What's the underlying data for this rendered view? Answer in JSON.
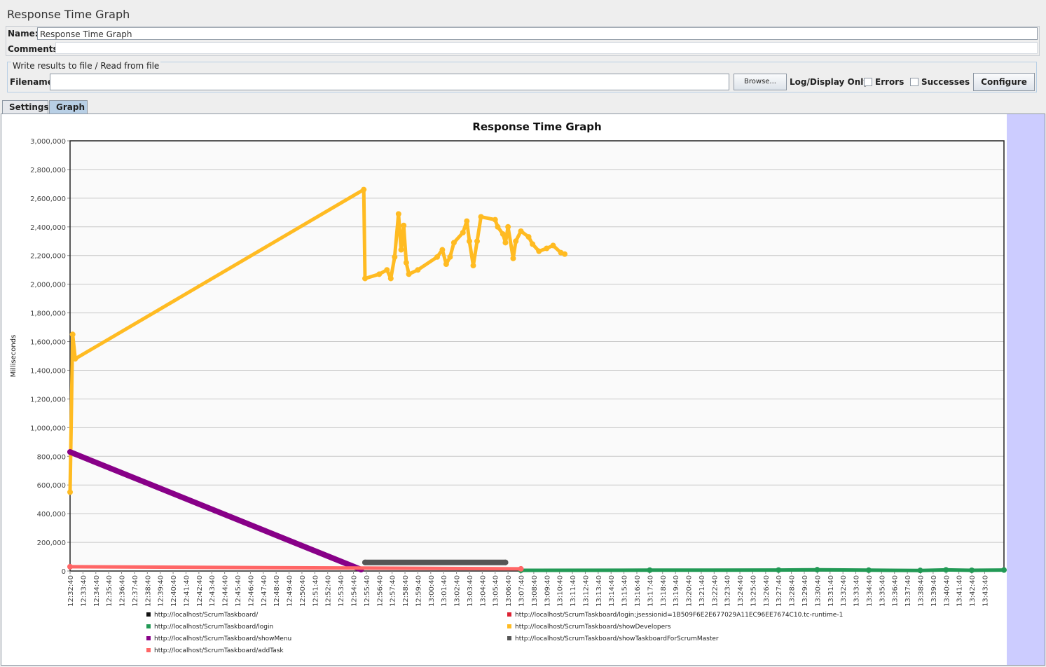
{
  "window": {
    "title": "Response Time Graph"
  },
  "form": {
    "name_label": "Name:",
    "name_value": "Response Time Graph",
    "comments_label": "Comments:",
    "comments_value": ""
  },
  "file_group": {
    "legend": "Write results to file / Read from file",
    "filename_label": "Filename",
    "filename_value": "",
    "browse_label": "Browse...",
    "log_display_label": "Log/Display Only:",
    "errors_label": "Errors",
    "errors_checked": false,
    "successes_label": "Successes",
    "successes_checked": false,
    "configure_label": "Configure"
  },
  "tabs": [
    {
      "label": "Settings",
      "active": false
    },
    {
      "label": "Graph",
      "active": true
    }
  ],
  "chart_data": {
    "type": "line",
    "title": "Response Time Graph",
    "ylabel": "Milliseconds",
    "xlabel": "",
    "ylim": [
      0,
      3000000
    ],
    "y_ticks": [
      "0",
      "200,000",
      "400,000",
      "600,000",
      "800,000",
      "1,000,000",
      "1,200,000",
      "1,400,000",
      "1,600,000",
      "1,800,000",
      "2,000,000",
      "2,200,000",
      "2,400,000",
      "2,600,000",
      "2,800,000",
      "3,000,000"
    ],
    "x_ticks": [
      "12:32:40",
      "12:33:40",
      "12:34:40",
      "12:35:40",
      "12:36:40",
      "12:37:40",
      "12:38:40",
      "12:39:40",
      "12:40:40",
      "12:41:40",
      "12:42:40",
      "12:43:40",
      "12:44:40",
      "12:45:40",
      "12:46:40",
      "12:47:40",
      "12:48:40",
      "12:49:40",
      "12:50:40",
      "12:51:40",
      "12:52:40",
      "12:53:40",
      "12:54:40",
      "12:55:40",
      "12:56:40",
      "12:57:40",
      "12:58:40",
      "12:59:40",
      "13:00:40",
      "13:01:40",
      "13:02:40",
      "13:03:40",
      "13:04:40",
      "13:05:40",
      "13:06:40",
      "13:07:40",
      "13:08:40",
      "13:09:40",
      "13:10:40",
      "13:11:40",
      "13:12:40",
      "13:13:40",
      "13:14:40",
      "13:15:40",
      "13:16:40",
      "13:17:40",
      "13:18:40",
      "13:19:40",
      "13:20:40",
      "13:21:40",
      "13:22:40",
      "13:23:40",
      "13:24:40",
      "13:25:40",
      "13:26:40",
      "13:27:40",
      "13:28:40",
      "13:29:40",
      "13:30:40",
      "13:31:40",
      "13:32:40",
      "13:33:40",
      "13:34:40",
      "13:35:40",
      "13:36:40",
      "13:37:40",
      "13:38:40",
      "13:39:40",
      "13:40:40",
      "13:41:40",
      "13:42:40",
      "13:43:40"
    ],
    "x_unit": "minutes after 12:32:40",
    "x_range": [
      0,
      72.5
    ],
    "grid": true,
    "legend_position": "bottom",
    "series": [
      {
        "name": "http://localhost/ScrumTaskboard/",
        "color": "#111111",
        "points": []
      },
      {
        "name": "http://localhost/ScrumTaskboard/login;jsessionid=1B509F6E2E677029A11EC96EE7674C10.tc-runtime-1",
        "color": "#dd2233",
        "points": []
      },
      {
        "name": "http://localhost/ScrumTaskboard/login",
        "color": "#229955",
        "points": [
          [
            35,
            5000
          ],
          [
            45,
            6000
          ],
          [
            55,
            7000
          ],
          [
            58,
            9000
          ],
          [
            62,
            6000
          ],
          [
            66,
            4000
          ],
          [
            68,
            8000
          ],
          [
            70,
            5000
          ],
          [
            72.5,
            7000
          ]
        ]
      },
      {
        "name": "http://localhost/ScrumTaskboard/showDevelopers",
        "color": "#ffbb22",
        "points": [
          [
            0,
            550000
          ],
          [
            0.2,
            1650000
          ],
          [
            0.4,
            1480000
          ],
          [
            22.8,
            2660000
          ],
          [
            22.9,
            2040000
          ],
          [
            24,
            2070000
          ],
          [
            24.6,
            2100000
          ],
          [
            24.9,
            2040000
          ],
          [
            25.2,
            2190000
          ],
          [
            25.5,
            2490000
          ],
          [
            25.7,
            2240000
          ],
          [
            25.9,
            2410000
          ],
          [
            26.1,
            2150000
          ],
          [
            26.3,
            2070000
          ],
          [
            27,
            2100000
          ],
          [
            28.5,
            2190000
          ],
          [
            28.9,
            2240000
          ],
          [
            29.2,
            2140000
          ],
          [
            29.5,
            2190000
          ],
          [
            29.8,
            2290000
          ],
          [
            30.5,
            2360000
          ],
          [
            30.8,
            2440000
          ],
          [
            31,
            2300000
          ],
          [
            31.3,
            2130000
          ],
          [
            31.6,
            2300000
          ],
          [
            31.9,
            2470000
          ],
          [
            33,
            2450000
          ],
          [
            33.2,
            2400000
          ],
          [
            33.6,
            2350000
          ],
          [
            33.8,
            2290000
          ],
          [
            34,
            2400000
          ],
          [
            34.4,
            2180000
          ],
          [
            34.6,
            2300000
          ],
          [
            35,
            2370000
          ],
          [
            35.6,
            2330000
          ],
          [
            35.9,
            2280000
          ],
          [
            36.4,
            2230000
          ],
          [
            37,
            2250000
          ],
          [
            37.5,
            2270000
          ],
          [
            38.1,
            2220000
          ],
          [
            38.4,
            2210000
          ]
        ]
      },
      {
        "name": "http://localhost/ScrumTaskboard/showMenu",
        "color": "#880088",
        "points": [
          [
            0,
            830000
          ],
          [
            22.6,
            10000
          ]
        ]
      },
      {
        "name": "http://localhost/ScrumTaskboard/showTaskboardForScrumMaster",
        "color": "#555555",
        "points": [
          [
            22.9,
            60000
          ],
          [
            33.8,
            60000
          ]
        ]
      },
      {
        "name": "http://localhost/ScrumTaskboard/addTask",
        "color": "#ff6666",
        "points": [
          [
            0,
            30000
          ],
          [
            35,
            15000
          ]
        ]
      }
    ]
  }
}
